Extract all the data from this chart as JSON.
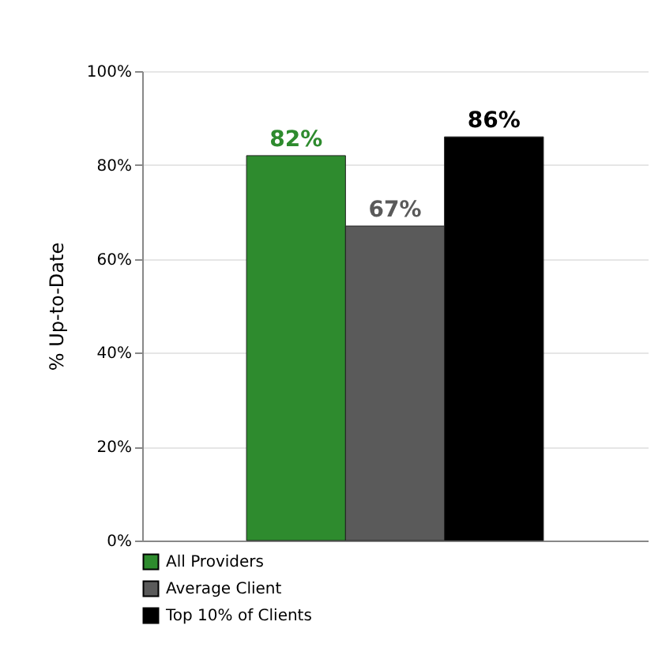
{
  "chart_data": {
    "type": "bar",
    "ylabel": "% Up-to-Date",
    "categories": [
      null
    ],
    "series": [
      {
        "name": "All Providers",
        "color": "#2e8b2e",
        "values": [
          82
        ],
        "value_labels": [
          "82%"
        ]
      },
      {
        "name": "Average Client",
        "color": "#5a5a5a",
        "values": [
          67
        ],
        "value_labels": [
          "67%"
        ]
      },
      {
        "name": "Top 10% of Clients",
        "color": "#000000",
        "values": [
          86
        ],
        "value_labels": [
          "86%"
        ]
      }
    ],
    "ylim": [
      0,
      100
    ],
    "yticks": [
      {
        "value": 0,
        "label": "0%"
      },
      {
        "value": 20,
        "label": "20%"
      },
      {
        "value": 40,
        "label": "40%"
      },
      {
        "value": 60,
        "label": "60%"
      },
      {
        "value": 80,
        "label": "80%"
      },
      {
        "value": 100,
        "label": "100%"
      }
    ],
    "grid": "y",
    "legend": "bottom"
  }
}
